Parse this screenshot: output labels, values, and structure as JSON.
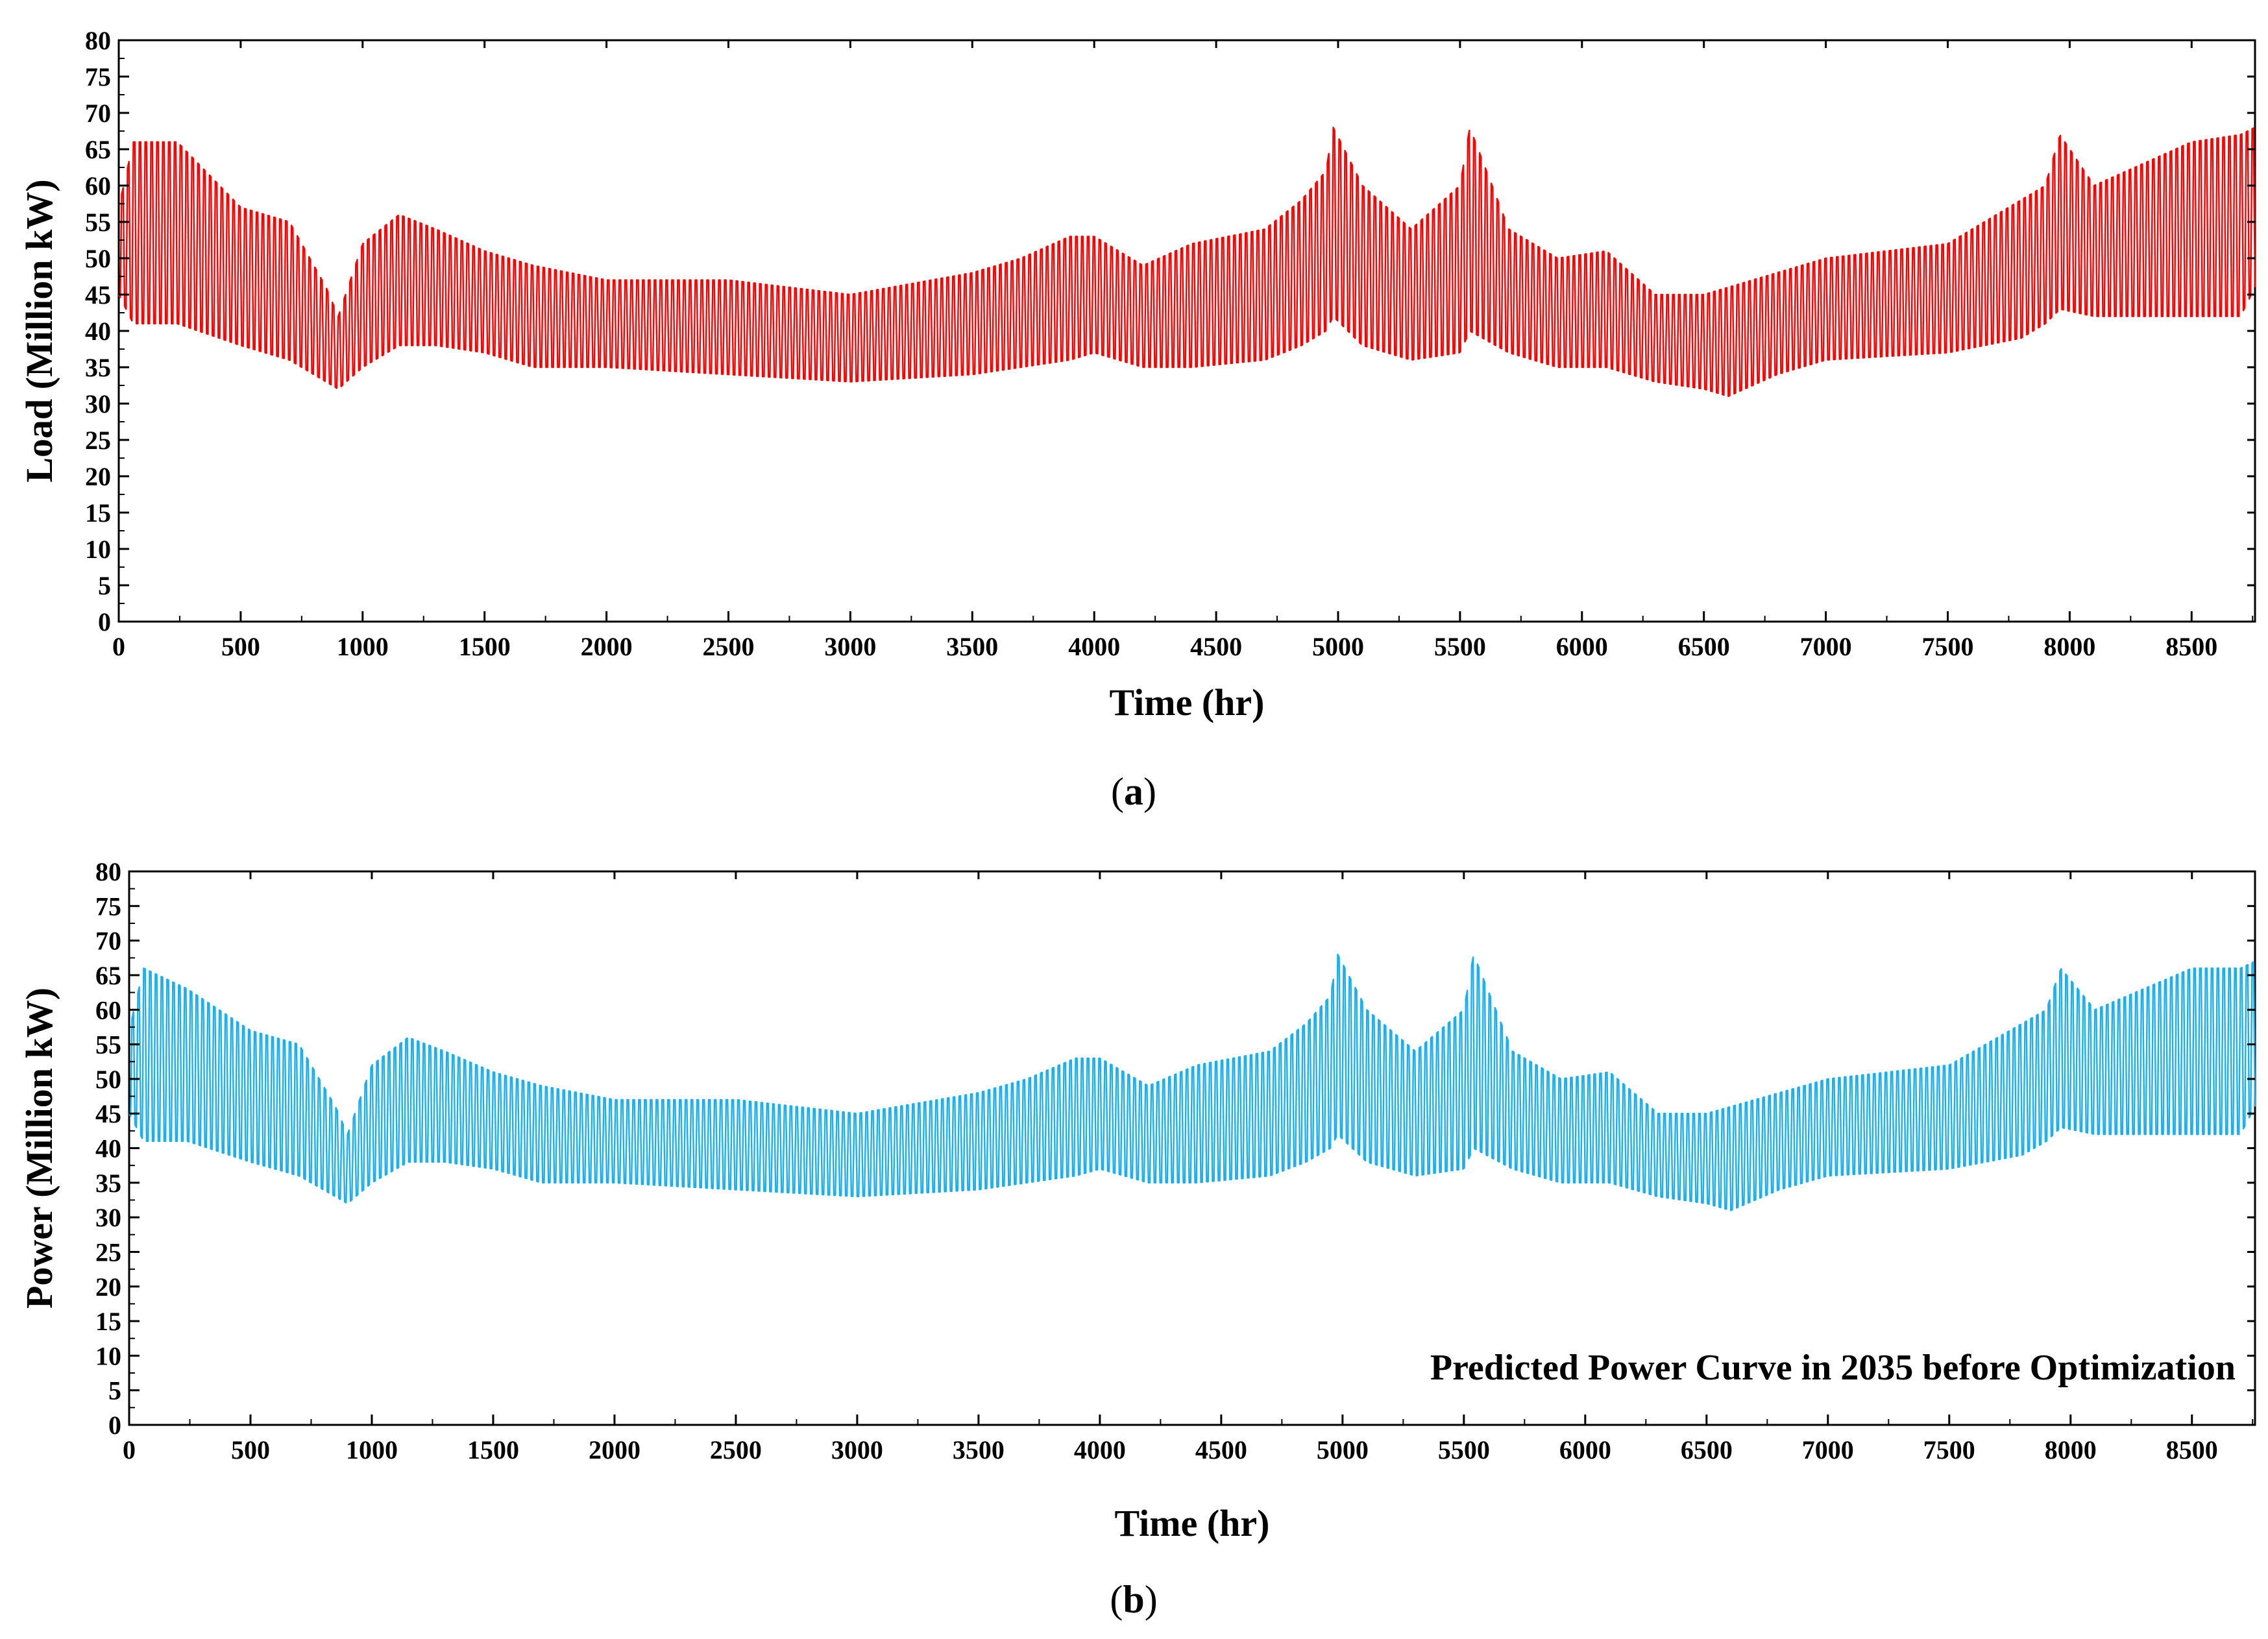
{
  "chart_data": [
    {
      "type": "line",
      "panel": "a",
      "panel_label": "(a)",
      "panel_letter": "a",
      "title": "",
      "xlabel": "Time (hr)",
      "ylabel": "Load (Million kW)",
      "xlim": [
        0,
        8760
      ],
      "ylim": [
        0,
        80
      ],
      "xticks": [
        0,
        500,
        1000,
        1500,
        2000,
        2500,
        3000,
        3500,
        4000,
        4500,
        5000,
        5500,
        6000,
        6500,
        7000,
        7500,
        8000,
        8500
      ],
      "yticks": [
        0,
        5,
        10,
        15,
        20,
        25,
        30,
        35,
        40,
        45,
        50,
        55,
        60,
        65,
        70,
        75,
        80
      ],
      "color": "#ff0000",
      "annotation": "",
      "series": [
        {
          "name": "Load",
          "envelope_x": [
            0,
            60,
            240,
            500,
            700,
            850,
            900,
            1000,
            1150,
            1300,
            1500,
            1700,
            2000,
            2500,
            3000,
            3500,
            3700,
            3900,
            4000,
            4200,
            4400,
            4700,
            4850,
            4950,
            4980,
            5100,
            5300,
            5500,
            5540,
            5700,
            5900,
            6100,
            6300,
            6500,
            6600,
            6800,
            7000,
            7500,
            7800,
            7900,
            7960,
            8100,
            8300,
            8500,
            8700,
            8760
          ],
          "upper": [
            57,
            66,
            66,
            57,
            55,
            46,
            42,
            52,
            56,
            54,
            51,
            49,
            47,
            47,
            45,
            48,
            50,
            53,
            53,
            49,
            52,
            54,
            58,
            62,
            68,
            60,
            54,
            60,
            68,
            54,
            50,
            51,
            45,
            45,
            46,
            48,
            50,
            52,
            58,
            60,
            67,
            60,
            63,
            66,
            67,
            68
          ],
          "lower": [
            45,
            41,
            41,
            38,
            36,
            33,
            32,
            35,
            38,
            38,
            37,
            35,
            35,
            34,
            33,
            34,
            35,
            36,
            37,
            35,
            35,
            36,
            38,
            40,
            42,
            38,
            36,
            37,
            40,
            37,
            35,
            35,
            33,
            32,
            31,
            34,
            36,
            37,
            39,
            41,
            43,
            42,
            42,
            42,
            42,
            46
          ]
        }
      ]
    },
    {
      "type": "line",
      "panel": "b",
      "panel_label": "(b)",
      "panel_letter": "b",
      "title": "",
      "xlabel": "Time (hr)",
      "ylabel": "Power (Million kW)",
      "xlim": [
        0,
        8760
      ],
      "ylim": [
        0,
        80
      ],
      "xticks": [
        0,
        500,
        1000,
        1500,
        2000,
        2500,
        3000,
        3500,
        4000,
        4500,
        5000,
        5500,
        6000,
        6500,
        7000,
        7500,
        8000,
        8500
      ],
      "yticks": [
        0,
        5,
        10,
        15,
        20,
        25,
        30,
        35,
        40,
        45,
        50,
        55,
        60,
        65,
        70,
        75,
        80
      ],
      "color": "#1ab0f0",
      "annotation": "Predicted Power Curve in 2035 before Optimization",
      "series": [
        {
          "name": "Predicted Power",
          "envelope_x": [
            0,
            60,
            240,
            500,
            700,
            850,
            900,
            1000,
            1150,
            1300,
            1500,
            1700,
            2000,
            2500,
            3000,
            3500,
            3700,
            3900,
            4000,
            4200,
            4400,
            4700,
            4850,
            4950,
            4980,
            5100,
            5300,
            5500,
            5540,
            5700,
            5900,
            6100,
            6300,
            6500,
            6600,
            6800,
            7000,
            7500,
            7800,
            7900,
            7960,
            8100,
            8300,
            8500,
            8700,
            8760
          ],
          "upper": [
            57,
            66,
            63,
            57,
            55,
            46,
            42,
            52,
            56,
            54,
            51,
            49,
            47,
            47,
            45,
            48,
            50,
            53,
            53,
            49,
            52,
            54,
            58,
            62,
            68,
            60,
            54,
            60,
            68,
            54,
            50,
            51,
            45,
            45,
            46,
            48,
            50,
            52,
            58,
            60,
            66,
            60,
            63,
            66,
            66,
            67
          ],
          "lower": [
            45,
            41,
            41,
            38,
            36,
            33,
            32,
            35,
            38,
            38,
            37,
            35,
            35,
            34,
            33,
            34,
            35,
            36,
            37,
            35,
            35,
            36,
            38,
            40,
            42,
            38,
            36,
            37,
            40,
            37,
            35,
            35,
            33,
            32,
            31,
            34,
            36,
            37,
            39,
            41,
            43,
            42,
            42,
            42,
            42,
            46
          ]
        }
      ]
    }
  ]
}
